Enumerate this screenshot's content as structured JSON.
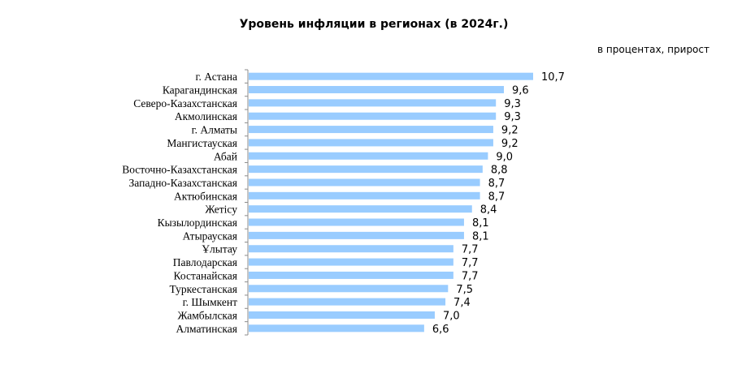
{
  "chart_data": {
    "type": "bar",
    "orientation": "horizontal",
    "title": "Уровень инфляции в регионах (в 2024г.)",
    "unit_note": "в процентах, прирост",
    "bar_color": "#99ccff",
    "categories": [
      "г. Астана",
      "Карагандинская",
      "Северо-Казахстанская",
      "Акмолинская",
      "г. Алматы",
      "Мангистауская",
      "Абай",
      "Восточно-Казахстанская",
      "Западно-Казахстанская",
      "Актюбинская",
      "Жетісу",
      "Кызылординская",
      "Атырауская",
      "Ұлытау",
      "Павлодарская",
      "Костанайская",
      "Туркестанская",
      "г. Шымкент",
      "Жамбылская",
      "Алматинская"
    ],
    "values": [
      10.7,
      9.6,
      9.3,
      9.3,
      9.2,
      9.2,
      9.0,
      8.8,
      8.7,
      8.7,
      8.4,
      8.1,
      8.1,
      7.7,
      7.7,
      7.7,
      7.5,
      7.4,
      7.0,
      6.6
    ],
    "value_labels": [
      "10,7",
      "9,6",
      "9,3",
      "9,3",
      "9,2",
      "9,2",
      "9,0",
      "8,8",
      "8,7",
      "8,7",
      "8,4",
      "8,1",
      "8,1",
      "7,7",
      "7,7",
      "7,7",
      "7,5",
      "7,4",
      "7,0",
      "6,6"
    ],
    "xlim": [
      0,
      10.7
    ],
    "grid": false,
    "legend": "none"
  }
}
